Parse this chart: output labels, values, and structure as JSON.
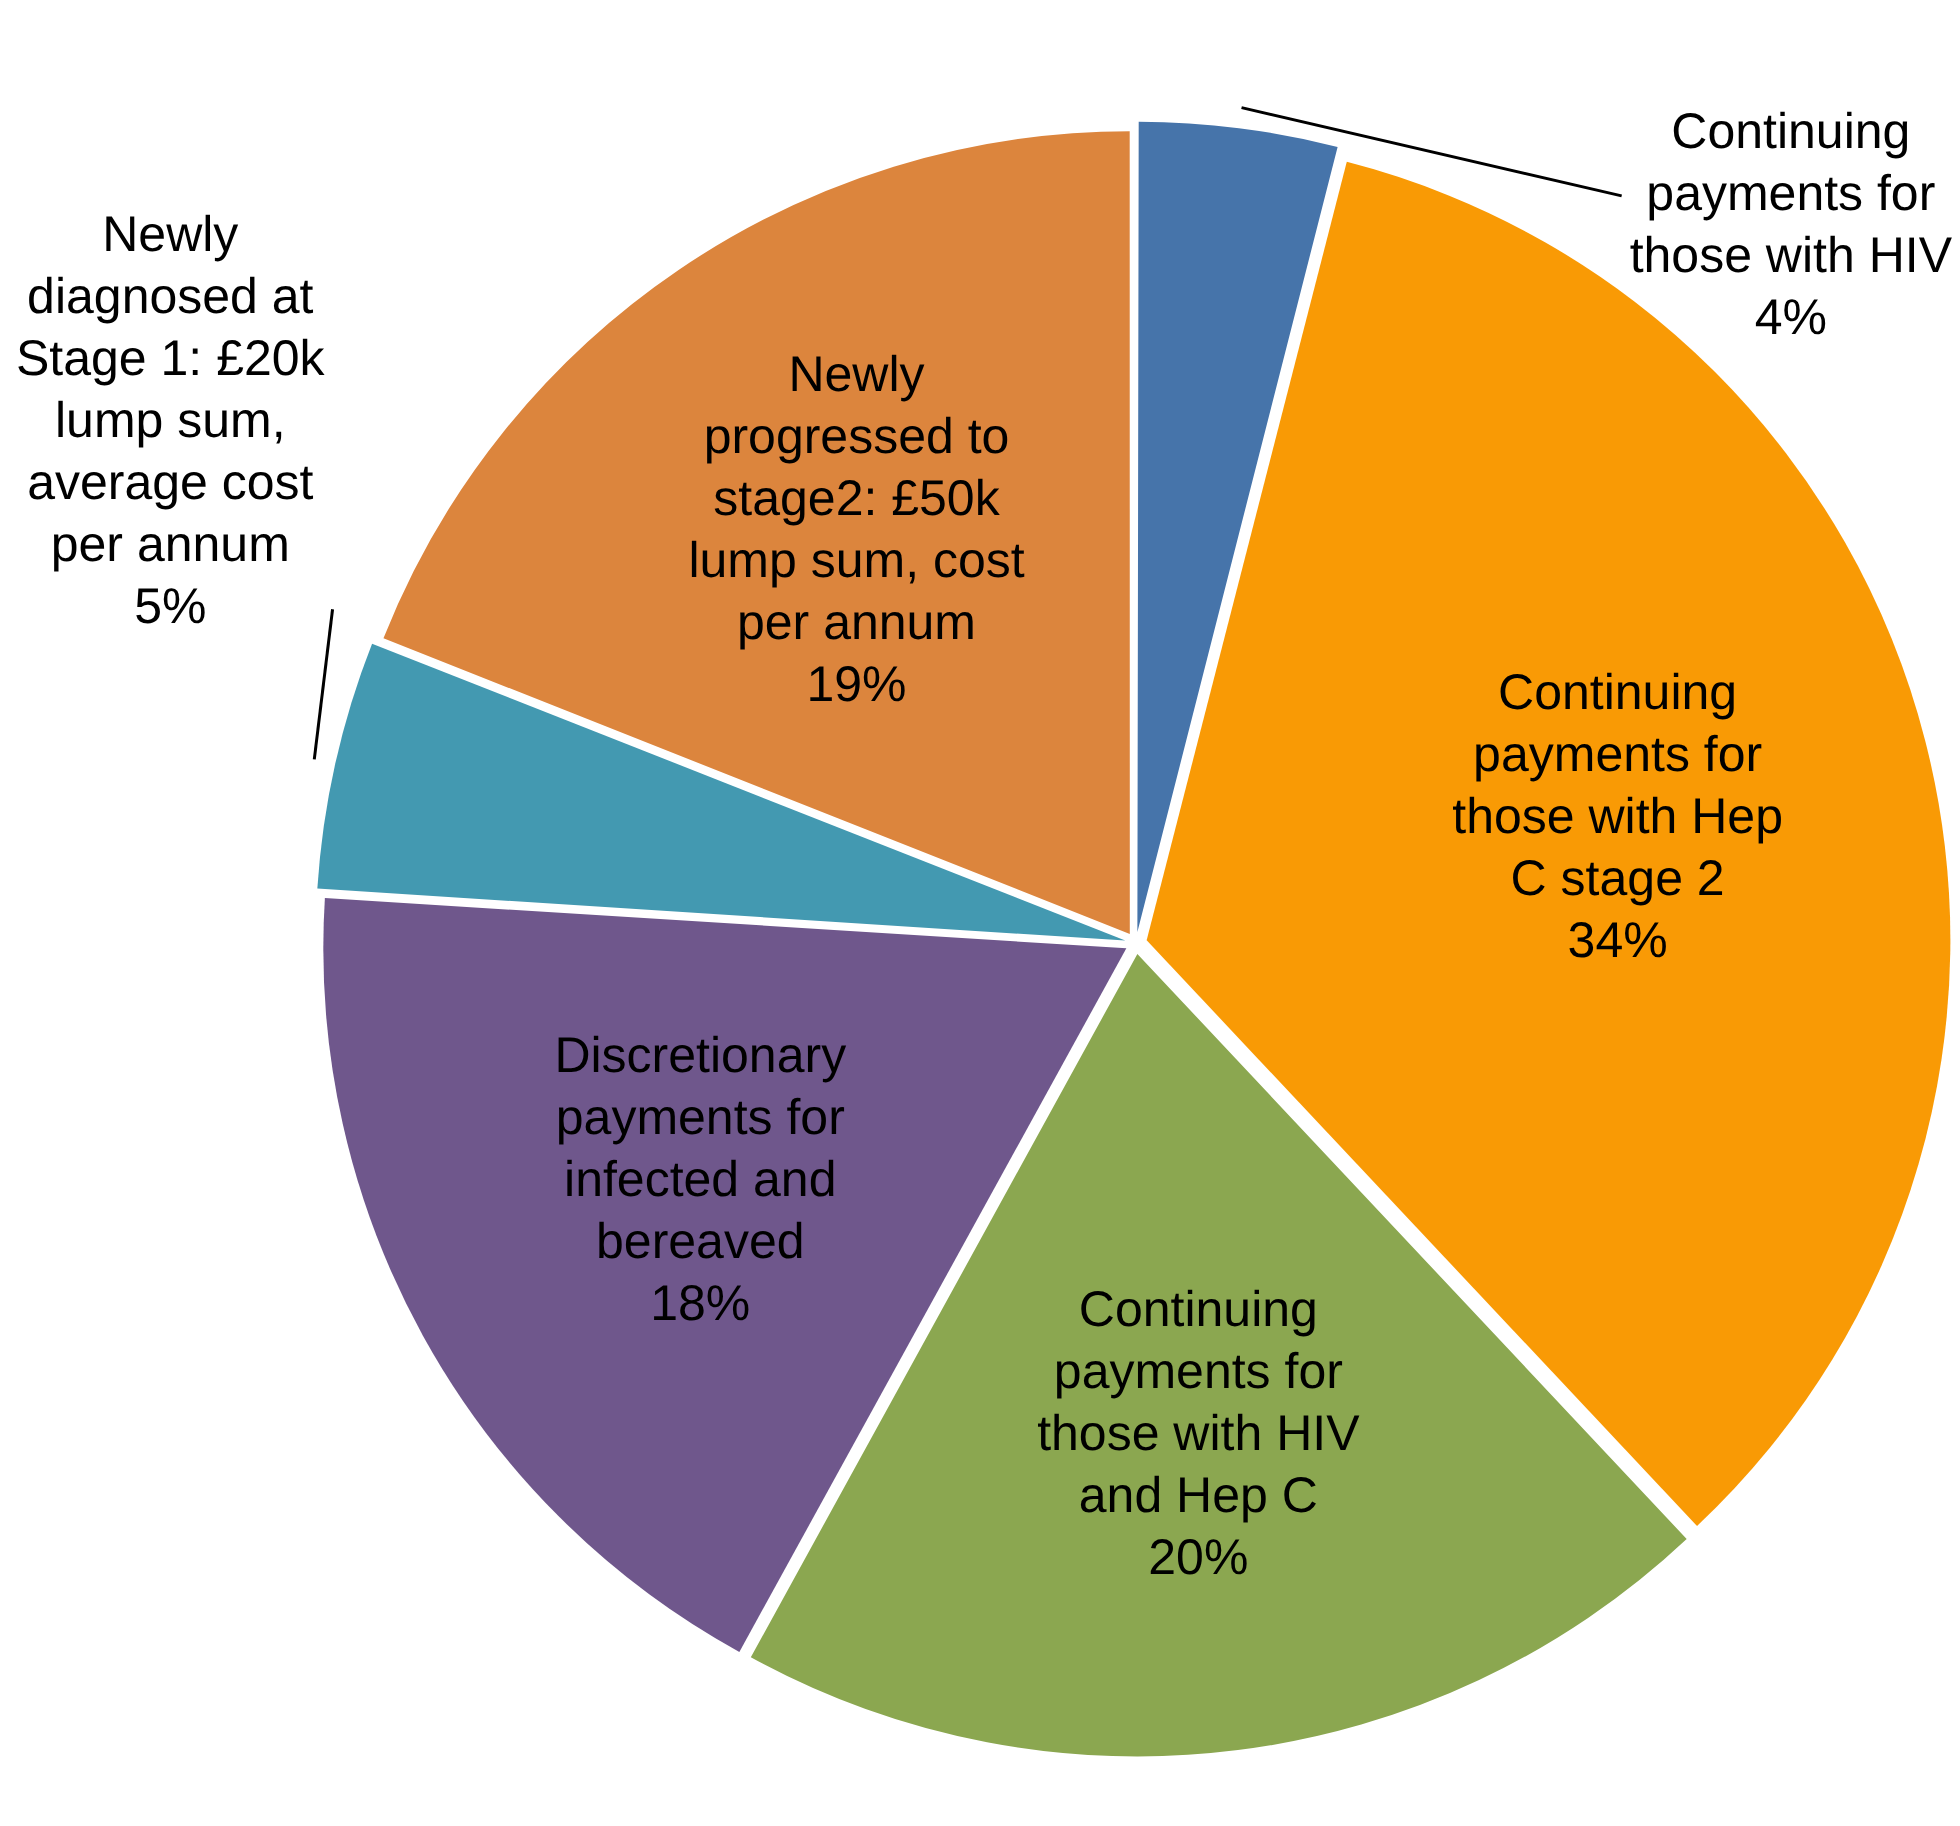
{
  "chart_data": {
    "type": "pie",
    "categories": [
      "Continuing payments for those with HIV",
      "Continuing payments for those with Hep C stage 2",
      "Continuing payments for those with HIV and Hep C",
      "Discretionary payments for infected and bereaved",
      "Newly diagnosed at Stage 1: £20k lump sum, average cost per annum",
      "Newly progressed to stage2: £50k lump sum, cost per annum"
    ],
    "values": [
      4,
      34,
      20,
      18,
      5,
      19
    ],
    "value_labels": [
      "4%",
      "34%",
      "20%",
      "18%",
      "5%",
      "19%"
    ],
    "colors": [
      "#4674aa",
      "#f99a05",
      "#8ba750",
      "#6f578c",
      "#4399b1",
      "#dc853d"
    ]
  }
}
